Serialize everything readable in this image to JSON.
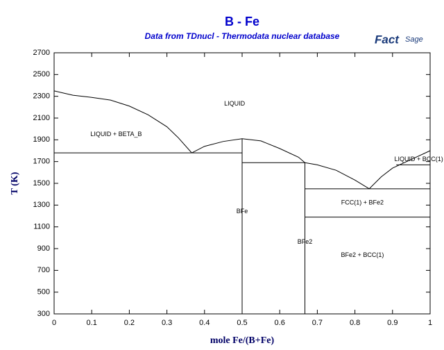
{
  "chart_data": {
    "type": "line",
    "title": "B - Fe",
    "subtitle": "Data from TDnucl - Thermodata nuclear database",
    "logo": [
      "Fact",
      "Sage"
    ],
    "x_label": "mole Fe/(B+Fe)",
    "y_label": "T (K)",
    "xlim": [
      0,
      1
    ],
    "ylim": [
      300,
      2700
    ],
    "xticks": [
      0,
      0.1,
      0.2,
      0.3,
      0.4,
      0.5,
      0.6,
      0.7,
      0.8,
      0.9,
      1
    ],
    "yticks": [
      300,
      500,
      700,
      900,
      1100,
      1300,
      1500,
      1700,
      1900,
      2100,
      2300,
      2500,
      2700
    ],
    "color": "#000000",
    "series": [
      {
        "x": [
          0,
          0.05,
          0.1,
          0.15,
          0.2,
          0.25,
          0.3,
          0.33,
          0.366
        ],
        "y": [
          2350,
          2310,
          2290,
          2265,
          2210,
          2130,
          2020,
          1920,
          1780
        ]
      },
      {
        "x": [
          0.366,
          0.4,
          0.45,
          0.5,
          0.55,
          0.6,
          0.65,
          0.667
        ],
        "y": [
          1780,
          1840,
          1885,
          1910,
          1890,
          1820,
          1740,
          1690
        ]
      },
      {
        "x": [
          0.667,
          0.7,
          0.75,
          0.8,
          0.838
        ],
        "y": [
          1690,
          1670,
          1620,
          1530,
          1450
        ]
      },
      {
        "x": [
          0.838,
          0.87,
          0.9,
          0.95,
          1
        ],
        "y": [
          1450,
          1560,
          1640,
          1720,
          1800
        ]
      },
      {
        "x": [
          0,
          0.5
        ],
        "y": [
          1780,
          1780
        ]
      },
      {
        "x": [
          0.5,
          0.5
        ],
        "y": [
          300,
          1910
        ]
      },
      {
        "x": [
          0.5,
          0.667
        ],
        "y": [
          1690,
          1690
        ]
      },
      {
        "x": [
          0.667,
          0.667
        ],
        "y": [
          300,
          1690
        ]
      },
      {
        "x": [
          0.667,
          1
        ],
        "y": [
          1450,
          1450
        ]
      },
      {
        "x": [
          0.667,
          1
        ],
        "y": [
          1190,
          1190
        ]
      },
      {
        "x": [
          0.91,
          1
        ],
        "y": [
          1670,
          1670
        ]
      }
    ],
    "annotations": [
      {
        "text": "LIQUID",
        "x": 0.48,
        "y": 2230
      },
      {
        "text": "LIQUID + BETA_B",
        "x": 0.165,
        "y": 1950
      },
      {
        "text": "BFe",
        "x": 0.5,
        "y": 1240
      },
      {
        "text": "BFe2",
        "x": 0.667,
        "y": 960
      },
      {
        "text": "FCC(1) + BFe2",
        "x": 0.82,
        "y": 1320
      },
      {
        "text": "BFe2 + BCC(1)",
        "x": 0.82,
        "y": 840
      },
      {
        "text": "LIQUID + BCC(1)",
        "x": 0.905,
        "y": 1720
      }
    ]
  }
}
